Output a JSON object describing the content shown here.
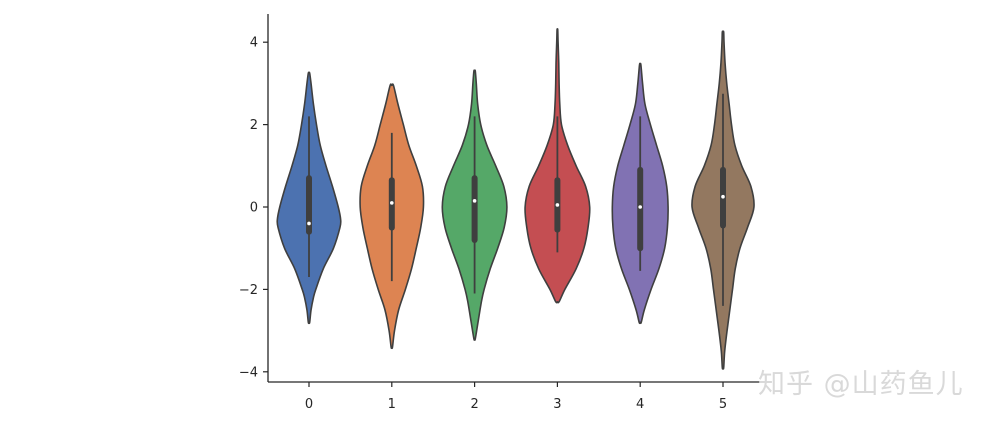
{
  "chart_data": {
    "type": "violin",
    "categories": [
      "0",
      "1",
      "2",
      "3",
      "4",
      "5"
    ],
    "ylim": [
      -4.3,
      4.75
    ],
    "yticks": [
      -4,
      -2,
      0,
      2,
      4
    ],
    "ytick_labels": [
      "−4",
      "−2",
      "0",
      "2",
      "4"
    ],
    "colors": [
      "#4c72b0",
      "#dd8452",
      "#55a868",
      "#c44e52",
      "#8172b3",
      "#937860"
    ],
    "series": [
      {
        "category": "0",
        "range": [
          -2.8,
          3.25
        ],
        "quartiles": [
          -0.6,
          -0.4,
          0.7
        ],
        "whiskers": [
          -1.7,
          2.2
        ],
        "density": [
          [
            -2.8,
            0.02
          ],
          [
            -2.5,
            0.06
          ],
          [
            -2.2,
            0.13
          ],
          [
            -2.0,
            0.2
          ],
          [
            -1.5,
            0.42
          ],
          [
            -1.0,
            0.72
          ],
          [
            -0.5,
            0.91
          ],
          [
            -0.3,
            0.93
          ],
          [
            0.0,
            0.86
          ],
          [
            0.5,
            0.69
          ],
          [
            1.0,
            0.5
          ],
          [
            1.5,
            0.33
          ],
          [
            2.0,
            0.22
          ],
          [
            2.5,
            0.13
          ],
          [
            3.0,
            0.06
          ],
          [
            3.25,
            0.02
          ]
        ]
      },
      {
        "category": "1",
        "range": [
          -3.4,
          2.95
        ],
        "quartiles": [
          -0.5,
          0.1,
          0.65
        ],
        "whiskers": [
          -1.8,
          1.8
        ],
        "density": [
          [
            -3.4,
            0.02
          ],
          [
            -3.0,
            0.08
          ],
          [
            -2.5,
            0.2
          ],
          [
            -2.0,
            0.4
          ],
          [
            -1.5,
            0.58
          ],
          [
            -1.0,
            0.72
          ],
          [
            -0.5,
            0.85
          ],
          [
            0.0,
            0.93
          ],
          [
            0.5,
            0.9
          ],
          [
            1.0,
            0.72
          ],
          [
            1.5,
            0.5
          ],
          [
            2.0,
            0.34
          ],
          [
            2.5,
            0.18
          ],
          [
            2.95,
            0.05
          ]
        ]
      },
      {
        "category": "2",
        "range": [
          -3.2,
          3.3
        ],
        "quartiles": [
          -0.8,
          0.15,
          0.7
        ],
        "whiskers": [
          -2.1,
          2.2
        ],
        "density": [
          [
            -3.2,
            0.02
          ],
          [
            -2.8,
            0.1
          ],
          [
            -2.3,
            0.2
          ],
          [
            -2.0,
            0.28
          ],
          [
            -1.5,
            0.46
          ],
          [
            -1.0,
            0.68
          ],
          [
            -0.5,
            0.87
          ],
          [
            0.0,
            0.95
          ],
          [
            0.5,
            0.86
          ],
          [
            1.0,
            0.62
          ],
          [
            1.5,
            0.36
          ],
          [
            2.0,
            0.18
          ],
          [
            2.5,
            0.09
          ],
          [
            3.0,
            0.05
          ],
          [
            3.3,
            0.02
          ]
        ]
      },
      {
        "category": "3",
        "range": [
          -2.3,
          4.3
        ],
        "quartiles": [
          -0.55,
          0.05,
          0.65
        ],
        "whiskers": [
          -1.1,
          2.2
        ],
        "density": [
          [
            -2.3,
            0.05
          ],
          [
            -2.0,
            0.22
          ],
          [
            -1.5,
            0.55
          ],
          [
            -1.0,
            0.78
          ],
          [
            -0.5,
            0.9
          ],
          [
            0.0,
            0.95
          ],
          [
            0.5,
            0.83
          ],
          [
            1.0,
            0.55
          ],
          [
            1.5,
            0.3
          ],
          [
            2.0,
            0.12
          ],
          [
            2.5,
            0.07
          ],
          [
            3.0,
            0.05
          ],
          [
            3.5,
            0.04
          ],
          [
            4.0,
            0.02
          ],
          [
            4.3,
            0.01
          ]
        ]
      },
      {
        "category": "4",
        "range": [
          -2.8,
          3.45
        ],
        "quartiles": [
          -1.0,
          0.0,
          0.9
        ],
        "whiskers": [
          -1.55,
          2.2
        ],
        "density": [
          [
            -2.8,
            0.03
          ],
          [
            -2.5,
            0.12
          ],
          [
            -2.0,
            0.32
          ],
          [
            -1.5,
            0.55
          ],
          [
            -1.0,
            0.72
          ],
          [
            -0.5,
            0.8
          ],
          [
            0.0,
            0.82
          ],
          [
            0.5,
            0.78
          ],
          [
            1.0,
            0.66
          ],
          [
            1.5,
            0.48
          ],
          [
            2.0,
            0.3
          ],
          [
            2.5,
            0.14
          ],
          [
            3.0,
            0.07
          ],
          [
            3.45,
            0.02
          ]
        ]
      },
      {
        "category": "5",
        "range": [
          -3.9,
          4.25
        ],
        "quartiles": [
          -0.45,
          0.25,
          0.9
        ],
        "whiskers": [
          -2.4,
          2.75
        ],
        "density": [
          [
            -3.9,
            0.02
          ],
          [
            -3.5,
            0.05
          ],
          [
            -3.0,
            0.12
          ],
          [
            -2.5,
            0.2
          ],
          [
            -2.0,
            0.28
          ],
          [
            -1.5,
            0.36
          ],
          [
            -1.0,
            0.5
          ],
          [
            -0.5,
            0.72
          ],
          [
            0.0,
            0.91
          ],
          [
            0.5,
            0.82
          ],
          [
            1.0,
            0.55
          ],
          [
            1.5,
            0.35
          ],
          [
            2.0,
            0.25
          ],
          [
            2.5,
            0.18
          ],
          [
            3.0,
            0.11
          ],
          [
            3.5,
            0.06
          ],
          [
            4.0,
            0.03
          ],
          [
            4.25,
            0.02
          ]
        ]
      }
    ]
  },
  "watermark": "知乎 @山药鱼儿"
}
